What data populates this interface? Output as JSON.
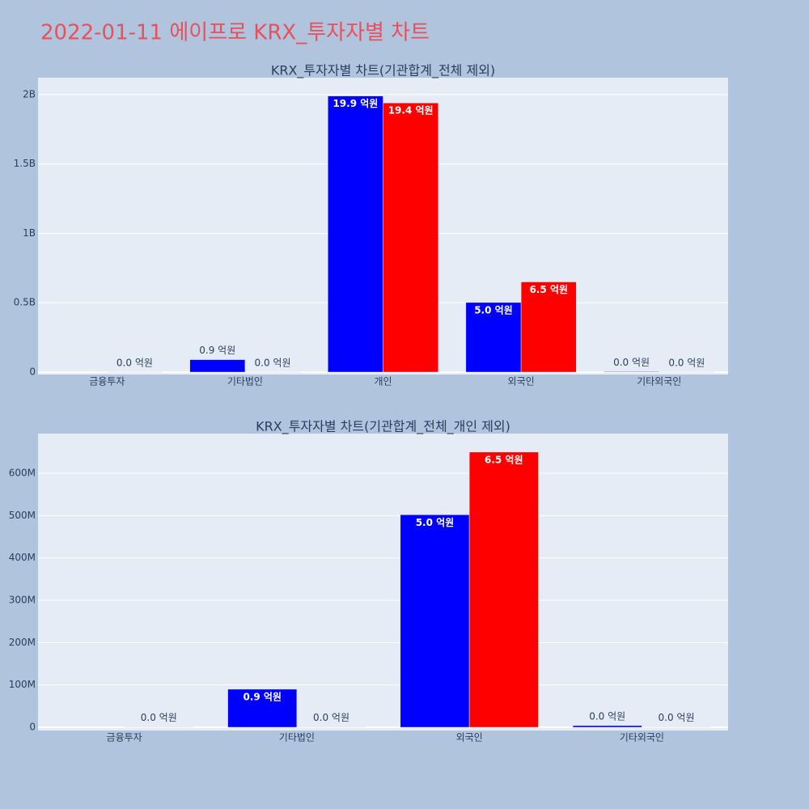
{
  "title": "2022-01-11 에이프로 KRX_투자자별 차트",
  "chart_data": [
    {
      "type": "bar",
      "title": "KRX_투자자별 차트(기관합계_전체 제외)",
      "categories": [
        "금융투자",
        "기타법인",
        "개인",
        "외국인",
        "기타외국인"
      ],
      "series": [
        {
          "color": "#0000ff",
          "values": [
            null,
            90000000,
            1990000000,
            502000000,
            4000000
          ],
          "value_labels": [
            null,
            "0.9 억원",
            "19.9 억원",
            "5.0 억원",
            "0.0 억원"
          ]
        },
        {
          "color": "#ff0000",
          "values": [
            1000000,
            1000000,
            1940000000,
            650000000,
            1000000
          ],
          "value_labels": [
            "0.0 억원",
            "0.0 억원",
            "19.4 억원",
            "6.5 억원",
            "0.0 억원"
          ]
        }
      ],
      "ylim": [
        -17500000,
        2122000000
      ],
      "yticks": [
        0,
        {
          "value": 500000000,
          "label": "0.5B"
        },
        {
          "value": 1000000000,
          "label": "1B"
        },
        {
          "value": 1500000000,
          "label": "1.5B"
        },
        {
          "value": 2000000000,
          "label": "2B"
        }
      ],
      "grid": true
    },
    {
      "type": "bar",
      "title": "KRX_투자자별 차트(기관합계_전체_개인 제외)",
      "categories": [
        "금융투자",
        "기타법인",
        "외국인",
        "기타외국인"
      ],
      "series": [
        {
          "color": "#0000ff",
          "values": [
            null,
            90000000,
            502000000,
            4000000
          ],
          "value_labels": [
            null,
            "0.9 억원",
            "5.0 억원",
            "0.0 억원"
          ]
        },
        {
          "color": "#ff0000",
          "values": [
            1000000,
            1000000,
            650000000,
            1000000
          ],
          "value_labels": [
            "0.0 억원",
            "0.0 억원",
            "6.5 억원",
            "0.0 억원"
          ]
        }
      ],
      "ylim": [
        -7600000,
        693600000
      ],
      "yticks": [
        0,
        {
          "value": 100000000,
          "label": "100M"
        },
        {
          "value": 200000000,
          "label": "200M"
        },
        {
          "value": 300000000,
          "label": "300M"
        },
        {
          "value": 400000000,
          "label": "400M"
        },
        {
          "value": 500000000,
          "label": "500M"
        },
        {
          "value": 600000000,
          "label": "600M"
        }
      ],
      "grid": true
    }
  ]
}
